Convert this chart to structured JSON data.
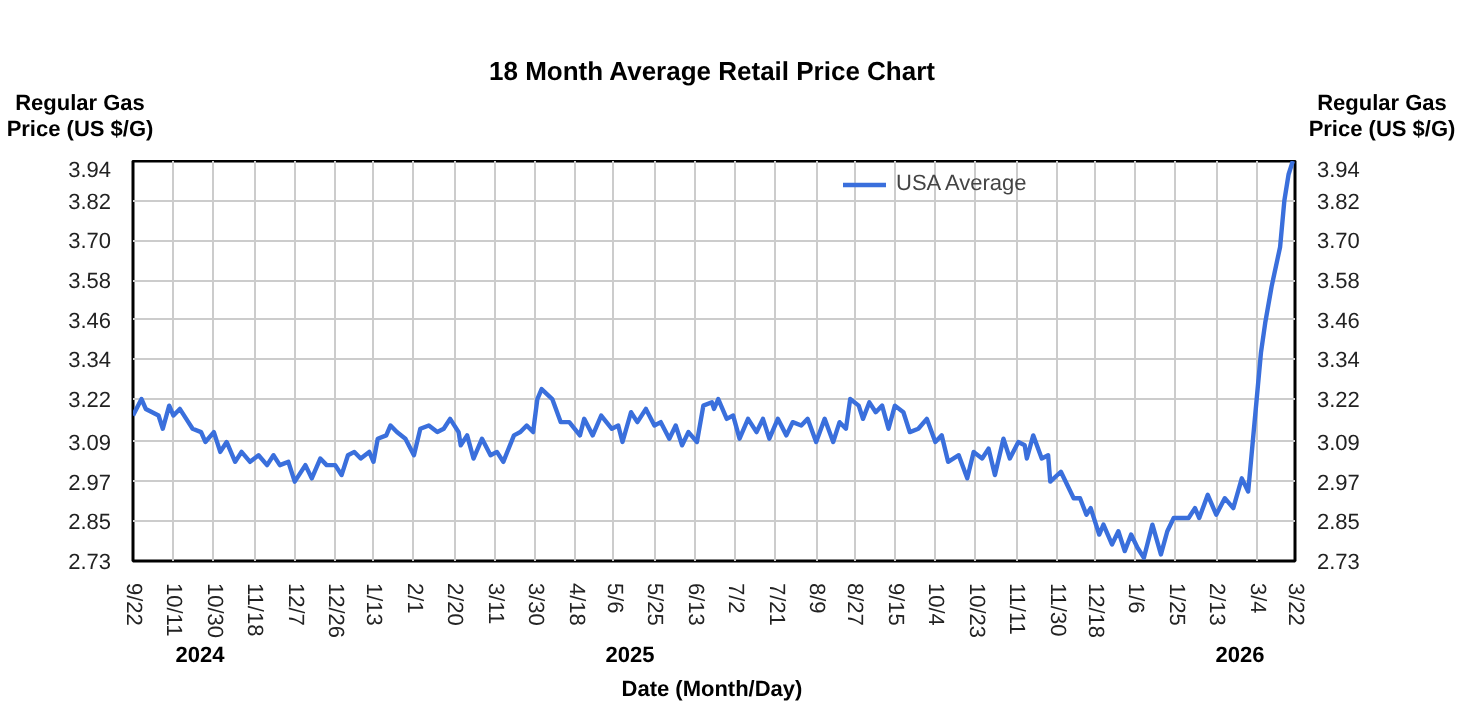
{
  "chart_data": {
    "type": "line",
    "title": "18 Month Average Retail Price Chart",
    "xlabel": "Date (Month/Day)",
    "ylabel": "Regular Gas Price (US $/G)",
    "y2label": "Regular Gas Price (US $/G)",
    "annotations": [
      "2024",
      "2025",
      "2026"
    ],
    "legend": "top",
    "grid": true,
    "marker": "none",
    "line_style": "solid",
    "xlim": [
      "2024-09-22",
      "2026-03-22"
    ],
    "xticks": [
      {
        "value": "2024-09-22",
        "label": "9/22"
      },
      {
        "value": "2024-10-11",
        "label": "10/11"
      },
      {
        "value": "2024-10-30",
        "label": "10/30"
      },
      {
        "value": "2024-11-18",
        "label": "11/18"
      },
      {
        "value": "2024-12-07",
        "label": "12/7"
      },
      {
        "value": "2024-12-26",
        "label": "12/26"
      },
      {
        "value": "2025-01-13",
        "label": "1/13"
      },
      {
        "value": "2025-02-01",
        "label": "2/1"
      },
      {
        "value": "2025-02-20",
        "label": "2/20"
      },
      {
        "value": "2025-03-11",
        "label": "3/11"
      },
      {
        "value": "2025-03-30",
        "label": "3/30"
      },
      {
        "value": "2025-04-18",
        "label": "4/18"
      },
      {
        "value": "2025-05-06",
        "label": "5/6"
      },
      {
        "value": "2025-05-25",
        "label": "5/25"
      },
      {
        "value": "2025-06-13",
        "label": "6/13"
      },
      {
        "value": "2025-07-02",
        "label": "7/2"
      },
      {
        "value": "2025-07-21",
        "label": "7/21"
      },
      {
        "value": "2025-08-09",
        "label": "8/9"
      },
      {
        "value": "2025-08-27",
        "label": "8/27"
      },
      {
        "value": "2025-09-15",
        "label": "9/15"
      },
      {
        "value": "2025-10-04",
        "label": "10/4"
      },
      {
        "value": "2025-10-23",
        "label": "10/23"
      },
      {
        "value": "2025-11-11",
        "label": "11/11"
      },
      {
        "value": "2025-11-30",
        "label": "11/30"
      },
      {
        "value": "2025-12-18",
        "label": "12/18"
      },
      {
        "value": "2026-01-06",
        "label": "1/6"
      },
      {
        "value": "2026-01-25",
        "label": "1/25"
      },
      {
        "value": "2026-02-13",
        "label": "2/13"
      },
      {
        "value": "2026-03-04",
        "label": "3/4"
      },
      {
        "value": "2026-03-22",
        "label": "3/22"
      }
    ],
    "ylim": [
      2.73,
      3.94
    ],
    "yticks": [
      2.73,
      2.85,
      2.97,
      3.09,
      3.22,
      3.34,
      3.46,
      3.58,
      {
        "value": 3.7,
        "label": "3.70"
      },
      3.82,
      3.94
    ],
    "y2lim": [
      2.73,
      3.94
    ],
    "y2ticks": [
      2.73,
      2.85,
      2.97,
      3.09,
      3.22,
      3.34,
      3.46,
      3.58,
      {
        "value": 3.7,
        "label": "3.70"
      },
      3.82,
      3.94
    ],
    "series": [
      {
        "name": "USA Average",
        "color": "#3a6fdc",
        "x": [
          "2024-09-22",
          "2024-09-26",
          "2024-09-28",
          "2024-10-04",
          "2024-10-06",
          "2024-10-09",
          "2024-10-11",
          "2024-10-14",
          "2024-10-18",
          "2024-10-20",
          "2024-10-24",
          "2024-10-26",
          "2024-10-30",
          "2024-11-02",
          "2024-11-05",
          "2024-11-09",
          "2024-11-12",
          "2024-11-16",
          "2024-11-20",
          "2024-11-24",
          "2024-11-27",
          "2024-11-30",
          "2024-12-04",
          "2024-12-07",
          "2024-12-12",
          "2024-12-15",
          "2024-12-19",
          "2024-12-22",
          "2024-12-26",
          "2024-12-29",
          "2025-01-01",
          "2025-01-04",
          "2025-01-07",
          "2025-01-11",
          "2025-01-13",
          "2025-01-15",
          "2025-01-19",
          "2025-01-21",
          "2025-01-24",
          "2025-01-28",
          "2025-02-01",
          "2025-02-04",
          "2025-02-08",
          "2025-02-12",
          "2025-02-15",
          "2025-02-18",
          "2025-02-22",
          "2025-02-23",
          "2025-02-26",
          "2025-03-01",
          "2025-03-05",
          "2025-03-09",
          "2025-03-12",
          "2025-03-15",
          "2025-03-20",
          "2025-03-23",
          "2025-03-26",
          "2025-03-29",
          "2025-03-31",
          "2025-04-02",
          "2025-04-07",
          "2025-04-11",
          "2025-04-15",
          "2025-04-20",
          "2025-04-22",
          "2025-04-26",
          "2025-04-30",
          "2025-05-05",
          "2025-05-08",
          "2025-05-10",
          "2025-05-14",
          "2025-05-17",
          "2025-05-21",
          "2025-05-25",
          "2025-05-28",
          "2025-06-01",
          "2025-06-04",
          "2025-06-07",
          "2025-06-10",
          "2025-06-14",
          "2025-06-17",
          "2025-06-21",
          "2025-06-22",
          "2025-06-24",
          "2025-06-28",
          "2025-07-01",
          "2025-07-04",
          "2025-07-08",
          "2025-07-12",
          "2025-07-15",
          "2025-07-18",
          "2025-07-22",
          "2025-07-26",
          "2025-07-29",
          "2025-08-02",
          "2025-08-05",
          "2025-08-09",
          "2025-08-13",
          "2025-08-17",
          "2025-08-20",
          "2025-08-23",
          "2025-08-25",
          "2025-08-29",
          "2025-08-31",
          "2025-09-03",
          "2025-09-06",
          "2025-09-09",
          "2025-09-12",
          "2025-09-15",
          "2025-09-19",
          "2025-09-22",
          "2025-09-26",
          "2025-09-30",
          "2025-10-04",
          "2025-10-07",
          "2025-10-10",
          "2025-10-15",
          "2025-10-19",
          "2025-10-22",
          "2025-10-26",
          "2025-10-29",
          "2025-11-01",
          "2025-11-05",
          "2025-11-08",
          "2025-11-12",
          "2025-11-15",
          "2025-11-16",
          "2025-11-19",
          "2025-11-23",
          "2025-11-26",
          "2025-11-27",
          "2025-12-02",
          "2025-12-05",
          "2025-12-08",
          "2025-12-11",
          "2025-12-14",
          "2025-12-16",
          "2025-12-20",
          "2025-12-22",
          "2025-12-26",
          "2025-12-29",
          "2026-01-01",
          "2026-01-04",
          "2026-01-07",
          "2026-01-10",
          "2026-01-14",
          "2026-01-18",
          "2026-01-21",
          "2026-01-24",
          "2026-01-27",
          "2026-01-31",
          "2026-02-03",
          "2026-02-05",
          "2026-02-09",
          "2026-02-13",
          "2026-02-17",
          "2026-02-21",
          "2026-02-25",
          "2026-02-28",
          "2026-03-02",
          "2026-03-04",
          "2026-03-06",
          "2026-03-08",
          "2026-03-11",
          "2026-03-15",
          "2026-03-17",
          "2026-03-19",
          "2026-03-21"
        ],
        "values": [
          3.17,
          3.22,
          3.19,
          3.17,
          3.13,
          3.2,
          3.17,
          3.19,
          3.15,
          3.13,
          3.12,
          3.09,
          3.12,
          3.06,
          3.09,
          3.03,
          3.06,
          3.03,
          3.05,
          3.02,
          3.05,
          3.02,
          3.03,
          2.97,
          3.02,
          2.98,
          3.04,
          3.02,
          3.02,
          2.99,
          3.05,
          3.06,
          3.04,
          3.06,
          3.03,
          3.1,
          3.11,
          3.14,
          3.12,
          3.1,
          3.05,
          3.13,
          3.14,
          3.12,
          3.13,
          3.16,
          3.12,
          3.08,
          3.11,
          3.04,
          3.1,
          3.05,
          3.06,
          3.03,
          3.11,
          3.12,
          3.14,
          3.12,
          3.22,
          3.25,
          3.22,
          3.15,
          3.15,
          3.11,
          3.16,
          3.11,
          3.17,
          3.13,
          3.14,
          3.09,
          3.18,
          3.15,
          3.19,
          3.14,
          3.15,
          3.1,
          3.14,
          3.08,
          3.12,
          3.09,
          3.2,
          3.21,
          3.19,
          3.22,
          3.16,
          3.17,
          3.1,
          3.16,
          3.12,
          3.16,
          3.1,
          3.16,
          3.11,
          3.15,
          3.14,
          3.16,
          3.09,
          3.16,
          3.09,
          3.15,
          3.13,
          3.22,
          3.2,
          3.16,
          3.21,
          3.18,
          3.2,
          3.13,
          3.2,
          3.18,
          3.12,
          3.13,
          3.16,
          3.09,
          3.11,
          3.03,
          3.05,
          2.98,
          3.06,
          3.04,
          3.07,
          2.99,
          3.1,
          3.04,
          3.09,
          3.08,
          3.04,
          3.11,
          3.04,
          3.05,
          2.97,
          3.0,
          2.96,
          2.92,
          2.92,
          2.87,
          2.89,
          2.81,
          2.84,
          2.78,
          2.82,
          2.76,
          2.81,
          2.77,
          2.74,
          2.84,
          2.75,
          2.82,
          2.86,
          2.86,
          2.86,
          2.89,
          2.86,
          2.93,
          2.87,
          2.92,
          2.89,
          2.98,
          2.94,
          3.08,
          3.22,
          3.36,
          3.45,
          3.56,
          3.68,
          3.82,
          3.9,
          3.94
        ]
      }
    ]
  }
}
